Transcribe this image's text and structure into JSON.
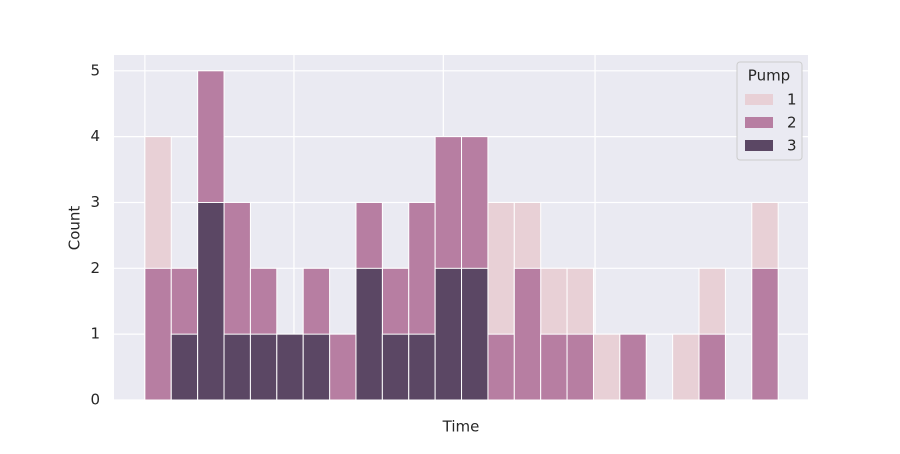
{
  "chart_data": {
    "type": "histogram",
    "xlabel": "Time",
    "ylabel": "Count",
    "legend_title": "Pump",
    "bins": [
      0,
      1,
      2,
      3,
      4,
      5,
      6,
      7,
      8,
      9,
      10,
      11,
      12,
      13,
      14,
      15,
      16,
      17,
      18,
      19,
      20,
      21,
      22,
      23,
      24
    ],
    "series": [
      {
        "name": "1",
        "color": "#e8d0d6",
        "values": [
          4,
          0,
          0,
          0,
          0,
          0,
          0,
          0,
          0,
          0,
          0,
          0,
          0,
          3,
          3,
          2,
          2,
          1,
          0,
          0,
          1,
          2,
          0,
          3
        ]
      },
      {
        "name": "2",
        "color": "#b77ea2",
        "values": [
          2,
          2,
          5,
          3,
          2,
          0,
          2,
          1,
          3,
          2,
          3,
          4,
          4,
          1,
          2,
          1,
          1,
          0,
          1,
          0,
          0,
          1,
          0,
          2
        ]
      },
      {
        "name": "3",
        "color": "#5b4764",
        "values": [
          0,
          1,
          3,
          1,
          1,
          1,
          1,
          0,
          2,
          1,
          1,
          2,
          2,
          0,
          0,
          0,
          0,
          0,
          0,
          0,
          0,
          0,
          0,
          0
        ]
      }
    ],
    "xlim": [
      -1.17,
      25.13
    ],
    "xticks": [
      0,
      5.65,
      11.31,
      17.06
    ],
    "ylim": [
      0,
      5.24
    ],
    "yticks": [
      0,
      1,
      2,
      3,
      4,
      5
    ],
    "grid": true,
    "legend": "upper right"
  }
}
